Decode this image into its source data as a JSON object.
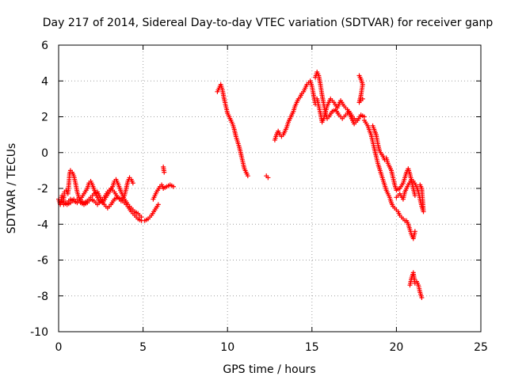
{
  "chart_data": {
    "type": "scatter",
    "title": "Day 217 of 2014, Sidereal Day-to-day VTEC variation (SDTVAR) for receiver ganp",
    "xlabel": "GPS time / hours",
    "ylabel": "SDTVAR / TECUs",
    "xlim": [
      0,
      25
    ],
    "ylim": [
      -10,
      6
    ],
    "xticks": [
      0,
      5,
      10,
      15,
      20,
      25
    ],
    "yticks": [
      -10,
      -8,
      -6,
      -4,
      -2,
      0,
      2,
      4,
      6
    ],
    "grid": true,
    "marker": "+",
    "series": [
      {
        "name": "SDTVAR",
        "color": "#ff0000",
        "segments": [
          [
            [
              0.0,
              -2.6
            ],
            [
              0.1,
              -2.9
            ],
            [
              0.2,
              -2.4
            ],
            [
              0.3,
              -2.6
            ],
            [
              0.35,
              -2.2
            ],
            [
              0.45,
              -2.1
            ],
            [
              0.55,
              -2.3
            ],
            [
              0.6,
              -1.8
            ],
            [
              0.65,
              -1.2
            ],
            [
              0.7,
              -1.0
            ],
            [
              0.8,
              -1.1
            ],
            [
              0.9,
              -1.3
            ],
            [
              1.0,
              -1.7
            ],
            [
              1.1,
              -2.2
            ],
            [
              1.2,
              -2.5
            ],
            [
              1.3,
              -2.7
            ],
            [
              1.5,
              -2.8
            ],
            [
              1.7,
              -2.7
            ],
            [
              1.9,
              -2.5
            ],
            [
              2.1,
              -2.3
            ],
            [
              2.3,
              -2.2
            ],
            [
              2.5,
              -2.6
            ],
            [
              2.7,
              -2.9
            ],
            [
              2.9,
              -3.1
            ],
            [
              3.1,
              -2.9
            ],
            [
              3.3,
              -2.6
            ],
            [
              3.5,
              -2.5
            ],
            [
              3.7,
              -2.6
            ],
            [
              3.9,
              -2.8
            ],
            [
              4.1,
              -3.0
            ],
            [
              4.3,
              -3.3
            ],
            [
              4.5,
              -3.5
            ],
            [
              4.7,
              -3.7
            ],
            [
              4.9,
              -3.8
            ],
            [
              5.1,
              -3.8
            ],
            [
              5.3,
              -3.7
            ],
            [
              5.5,
              -3.5
            ],
            [
              5.7,
              -3.2
            ],
            [
              5.9,
              -2.9
            ]
          ],
          [
            [
              0.3,
              -2.9
            ],
            [
              0.5,
              -2.8
            ],
            [
              0.7,
              -2.6
            ],
            [
              0.9,
              -2.7
            ],
            [
              1.1,
              -2.8
            ],
            [
              1.3,
              -2.6
            ],
            [
              1.5,
              -2.3
            ],
            [
              1.7,
              -2.0
            ],
            [
              1.8,
              -1.7
            ],
            [
              1.9,
              -1.6
            ],
            [
              2.0,
              -1.8
            ],
            [
              2.2,
              -2.3
            ],
            [
              2.4,
              -2.7
            ],
            [
              2.6,
              -2.8
            ],
            [
              2.8,
              -2.5
            ],
            [
              3.0,
              -2.2
            ],
            [
              3.2,
              -1.9
            ],
            [
              3.3,
              -1.6
            ],
            [
              3.4,
              -1.5
            ],
            [
              3.5,
              -1.7
            ],
            [
              3.7,
              -2.2
            ],
            [
              3.9,
              -2.6
            ],
            [
              4.1,
              -2.9
            ],
            [
              4.3,
              -3.1
            ],
            [
              4.5,
              -3.3
            ],
            [
              4.7,
              -3.4
            ],
            [
              4.9,
              -3.6
            ]
          ],
          [
            [
              0.1,
              -2.8
            ],
            [
              0.3,
              -2.7
            ],
            [
              0.5,
              -2.9
            ],
            [
              0.7,
              -2.8
            ],
            [
              0.9,
              -2.6
            ],
            [
              1.1,
              -2.6
            ],
            [
              1.3,
              -2.8
            ],
            [
              1.5,
              -2.9
            ],
            [
              1.7,
              -2.8
            ],
            [
              1.9,
              -2.6
            ],
            [
              2.1,
              -2.7
            ],
            [
              2.3,
              -2.9
            ],
            [
              2.5,
              -2.7
            ],
            [
              2.7,
              -2.5
            ],
            [
              2.9,
              -2.2
            ],
            [
              3.1,
              -2.0
            ],
            [
              3.3,
              -2.2
            ],
            [
              3.5,
              -2.5
            ],
            [
              3.7,
              -2.7
            ],
            [
              3.9,
              -2.4
            ],
            [
              4.0,
              -2.0
            ],
            [
              4.1,
              -1.6
            ],
            [
              4.2,
              -1.4
            ],
            [
              4.3,
              -1.5
            ],
            [
              4.4,
              -1.7
            ]
          ],
          [
            [
              5.6,
              -2.6
            ],
            [
              5.8,
              -2.2
            ],
            [
              6.0,
              -1.9
            ],
            [
              6.1,
              -1.8
            ],
            [
              6.2,
              -2.0
            ],
            [
              6.4,
              -1.9
            ],
            [
              6.6,
              -1.8
            ],
            [
              6.8,
              -1.9
            ]
          ],
          [
            [
              6.2,
              -0.8
            ],
            [
              6.25,
              -1.1
            ]
          ],
          [
            [
              9.4,
              3.4
            ],
            [
              9.5,
              3.6
            ],
            [
              9.6,
              3.8
            ],
            [
              9.7,
              3.5
            ],
            [
              9.8,
              3.0
            ],
            [
              9.9,
              2.6
            ],
            [
              10.0,
              2.2
            ],
            [
              10.1,
              2.0
            ],
            [
              10.2,
              1.8
            ],
            [
              10.3,
              1.6
            ],
            [
              10.4,
              1.3
            ],
            [
              10.5,
              0.9
            ],
            [
              10.6,
              0.6
            ],
            [
              10.7,
              0.3
            ],
            [
              10.8,
              -0.1
            ],
            [
              10.9,
              -0.5
            ],
            [
              11.0,
              -0.9
            ],
            [
              11.1,
              -1.1
            ],
            [
              11.2,
              -1.3
            ]
          ],
          [
            [
              12.3,
              -1.3
            ],
            [
              12.4,
              -1.4
            ]
          ],
          [
            [
              12.8,
              0.7
            ],
            [
              12.9,
              1.0
            ],
            [
              13.0,
              1.2
            ],
            [
              13.1,
              1.0
            ],
            [
              13.2,
              0.9
            ],
            [
              13.3,
              1.0
            ],
            [
              13.4,
              1.2
            ],
            [
              13.5,
              1.4
            ],
            [
              13.6,
              1.7
            ],
            [
              13.7,
              1.9
            ],
            [
              13.8,
              2.1
            ],
            [
              13.9,
              2.3
            ],
            [
              14.0,
              2.6
            ],
            [
              14.1,
              2.8
            ],
            [
              14.2,
              3.0
            ],
            [
              14.3,
              3.1
            ],
            [
              14.4,
              3.3
            ],
            [
              14.5,
              3.4
            ],
            [
              14.6,
              3.6
            ],
            [
              14.7,
              3.8
            ],
            [
              14.8,
              3.9
            ],
            [
              14.9,
              4.0
            ],
            [
              15.0,
              3.7
            ],
            [
              15.1,
              3.2
            ],
            [
              15.2,
              2.7
            ]
          ],
          [
            [
              15.2,
              4.2
            ],
            [
              15.3,
              4.5
            ],
            [
              15.4,
              4.3
            ],
            [
              15.5,
              3.8
            ],
            [
              15.6,
              3.2
            ],
            [
              15.7,
              2.7
            ],
            [
              15.8,
              2.2
            ],
            [
              15.9,
              1.9
            ],
            [
              16.0,
              2.0
            ],
            [
              16.2,
              2.3
            ],
            [
              16.4,
              2.4
            ],
            [
              16.6,
              2.1
            ],
            [
              16.8,
              1.9
            ],
            [
              17.0,
              2.1
            ],
            [
              17.2,
              2.3
            ],
            [
              17.4,
              2.0
            ],
            [
              17.6,
              1.8
            ]
          ],
          [
            [
              15.3,
              3.0
            ],
            [
              15.4,
              2.6
            ],
            [
              15.5,
              2.2
            ],
            [
              15.6,
              1.7
            ],
            [
              15.7,
              1.9
            ],
            [
              15.9,
              2.6
            ],
            [
              16.1,
              3.0
            ],
            [
              16.3,
              2.8
            ],
            [
              16.5,
              2.5
            ],
            [
              16.7,
              2.9
            ],
            [
              16.9,
              2.6
            ],
            [
              17.1,
              2.4
            ],
            [
              17.3,
              2.0
            ],
            [
              17.5,
              1.6
            ],
            [
              17.7,
              1.8
            ],
            [
              17.9,
              2.1
            ],
            [
              18.1,
              2.0
            ]
          ],
          [
            [
              17.8,
              4.3
            ],
            [
              17.9,
              4.1
            ],
            [
              18.0,
              3.8
            ],
            [
              17.9,
              3.2
            ],
            [
              17.8,
              2.8
            ],
            [
              18.0,
              3.0
            ]
          ],
          [
            [
              18.1,
              1.8
            ],
            [
              18.3,
              1.5
            ],
            [
              18.5,
              1.0
            ],
            [
              18.6,
              0.6
            ],
            [
              18.7,
              0.2
            ],
            [
              18.8,
              -0.2
            ],
            [
              18.9,
              -0.6
            ],
            [
              19.0,
              -0.9
            ],
            [
              19.1,
              -1.2
            ],
            [
              19.2,
              -1.5
            ],
            [
              19.3,
              -1.8
            ],
            [
              19.4,
              -2.1
            ],
            [
              19.5,
              -2.3
            ],
            [
              19.6,
              -2.5
            ],
            [
              19.7,
              -2.8
            ],
            [
              19.8,
              -3.0
            ],
            [
              19.9,
              -3.1
            ],
            [
              20.0,
              -3.2
            ],
            [
              20.1,
              -3.3
            ],
            [
              20.2,
              -3.5
            ],
            [
              20.3,
              -3.6
            ],
            [
              20.4,
              -3.7
            ],
            [
              20.5,
              -3.8
            ],
            [
              20.6,
              -3.8
            ],
            [
              20.7,
              -4.0
            ],
            [
              20.8,
              -4.3
            ],
            [
              20.9,
              -4.6
            ],
            [
              21.0,
              -4.8
            ],
            [
              21.1,
              -4.4
            ]
          ],
          [
            [
              18.6,
              1.5
            ],
            [
              18.8,
              1.0
            ],
            [
              18.9,
              0.5
            ],
            [
              19.0,
              0.1
            ],
            [
              19.2,
              -0.2
            ],
            [
              19.3,
              -0.4
            ],
            [
              19.4,
              -0.3
            ],
            [
              19.5,
              -0.6
            ],
            [
              19.7,
              -1.0
            ],
            [
              19.8,
              -1.4
            ],
            [
              19.9,
              -1.8
            ],
            [
              20.0,
              -2.1
            ],
            [
              20.2,
              -2.0
            ],
            [
              20.4,
              -1.7
            ],
            [
              20.5,
              -1.4
            ],
            [
              20.6,
              -1.1
            ],
            [
              20.7,
              -0.9
            ],
            [
              20.8,
              -1.2
            ],
            [
              20.9,
              -1.6
            ],
            [
              21.0,
              -2.0
            ],
            [
              21.1,
              -2.4
            ]
          ],
          [
            [
              20.0,
              -2.5
            ],
            [
              20.2,
              -2.3
            ],
            [
              20.4,
              -2.6
            ],
            [
              20.5,
              -2.2
            ],
            [
              20.7,
              -1.8
            ],
            [
              20.9,
              -1.5
            ],
            [
              21.0,
              -1.6
            ],
            [
              21.2,
              -1.9
            ],
            [
              21.3,
              -2.2
            ],
            [
              21.4,
              -2.6
            ],
            [
              21.5,
              -3.0
            ],
            [
              21.6,
              -3.3
            ],
            [
              21.5,
              -2.0
            ],
            [
              21.4,
              -1.8
            ]
          ],
          [
            [
              20.8,
              -7.4
            ],
            [
              20.9,
              -7.0
            ],
            [
              21.0,
              -6.7
            ],
            [
              21.05,
              -7.0
            ],
            [
              21.1,
              -7.3
            ],
            [
              21.2,
              -7.2
            ],
            [
              21.3,
              -7.4
            ],
            [
              21.4,
              -7.8
            ],
            [
              21.5,
              -8.1
            ]
          ]
        ]
      }
    ]
  }
}
